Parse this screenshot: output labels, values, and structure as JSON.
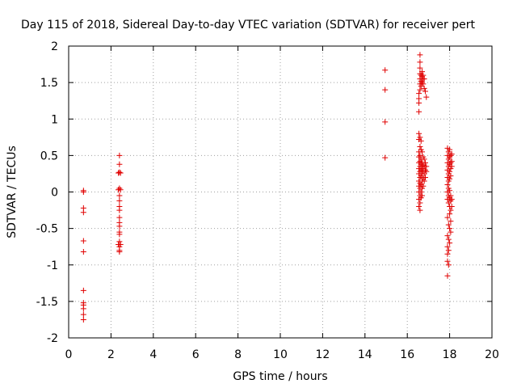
{
  "chart_data": {
    "type": "scatter",
    "title": "Day 115 of 2018, Sidereal Day-to-day VTEC variation (SDTVAR) for receiver pert",
    "xlabel": "GPS time / hours",
    "ylabel": "SDTVAR / TECUs",
    "xlim": [
      0,
      20
    ],
    "ylim": [
      -2,
      2
    ],
    "xticks": [
      "0",
      "2",
      "4",
      "6",
      "8",
      "10",
      "12",
      "14",
      "16",
      "18",
      "20"
    ],
    "yticks": [
      "-2",
      "-1.5",
      "-1",
      "-0.5",
      "0",
      "0.5",
      "1",
      "1.5",
      "2"
    ],
    "grid": true,
    "marker": "+",
    "marker_color": "#e00000",
    "series": [
      {
        "name": "SDTVAR",
        "points": [
          [
            0.7,
            0.02
          ],
          [
            0.7,
            0.0
          ],
          [
            0.7,
            -0.22
          ],
          [
            0.7,
            -0.28
          ],
          [
            0.7,
            -0.67
          ],
          [
            0.7,
            -0.82
          ],
          [
            0.7,
            -1.35
          ],
          [
            0.7,
            -1.52
          ],
          [
            0.7,
            -1.55
          ],
          [
            0.7,
            -1.6
          ],
          [
            0.7,
            -1.68
          ],
          [
            0.7,
            -1.75
          ],
          [
            2.4,
            0.5
          ],
          [
            2.4,
            0.38
          ],
          [
            2.4,
            0.27
          ],
          [
            2.35,
            0.26
          ],
          [
            2.45,
            0.26
          ],
          [
            2.4,
            0.05
          ],
          [
            2.35,
            0.03
          ],
          [
            2.45,
            0.03
          ],
          [
            2.4,
            -0.05
          ],
          [
            2.4,
            -0.12
          ],
          [
            2.4,
            -0.2
          ],
          [
            2.4,
            -0.25
          ],
          [
            2.4,
            -0.35
          ],
          [
            2.4,
            -0.42
          ],
          [
            2.4,
            -0.47
          ],
          [
            2.4,
            -0.55
          ],
          [
            2.4,
            -0.58
          ],
          [
            2.4,
            -0.68
          ],
          [
            2.35,
            -0.72
          ],
          [
            2.45,
            -0.72
          ],
          [
            2.4,
            -0.75
          ],
          [
            2.4,
            -0.8
          ],
          [
            2.4,
            -0.82
          ],
          [
            14.95,
            1.67
          ],
          [
            14.95,
            1.4
          ],
          [
            14.95,
            0.96
          ],
          [
            14.95,
            0.47
          ],
          [
            16.55,
            1.35
          ],
          [
            16.55,
            1.28
          ],
          [
            16.55,
            1.22
          ],
          [
            16.55,
            1.1
          ],
          [
            16.55,
            0.8
          ],
          [
            16.55,
            0.72
          ],
          [
            16.55,
            0.55
          ],
          [
            16.55,
            0.48
          ],
          [
            16.55,
            0.4
          ],
          [
            16.55,
            0.32
          ],
          [
            16.55,
            0.25
          ],
          [
            16.55,
            0.15
          ],
          [
            16.55,
            0.08
          ],
          [
            16.55,
            0.0
          ],
          [
            16.55,
            -0.1
          ],
          [
            16.55,
            -0.2
          ],
          [
            16.6,
            1.88
          ],
          [
            16.6,
            1.78
          ],
          [
            16.6,
            1.7
          ],
          [
            16.6,
            1.62
          ],
          [
            16.6,
            1.55
          ],
          [
            16.6,
            1.48
          ],
          [
            16.6,
            1.4
          ],
          [
            16.6,
            0.75
          ],
          [
            16.6,
            0.62
          ],
          [
            16.6,
            0.5
          ],
          [
            16.6,
            0.42
          ],
          [
            16.6,
            0.35
          ],
          [
            16.6,
            0.28
          ],
          [
            16.6,
            0.2
          ],
          [
            16.6,
            0.12
          ],
          [
            16.6,
            0.05
          ],
          [
            16.6,
            -0.05
          ],
          [
            16.6,
            -0.15
          ],
          [
            16.6,
            -0.25
          ],
          [
            16.65,
            1.6
          ],
          [
            16.65,
            1.52
          ],
          [
            16.65,
            1.45
          ],
          [
            16.65,
            0.7
          ],
          [
            16.65,
            0.58
          ],
          [
            16.65,
            0.45
          ],
          [
            16.65,
            0.38
          ],
          [
            16.65,
            0.3
          ],
          [
            16.65,
            0.22
          ],
          [
            16.65,
            0.1
          ],
          [
            16.65,
            0.0
          ],
          [
            16.65,
            -0.08
          ],
          [
            16.7,
            1.65
          ],
          [
            16.7,
            1.58
          ],
          [
            16.7,
            1.5
          ],
          [
            16.7,
            0.55
          ],
          [
            16.7,
            0.4
          ],
          [
            16.7,
            0.32
          ],
          [
            16.7,
            0.25
          ],
          [
            16.7,
            0.15
          ],
          [
            16.7,
            0.05
          ],
          [
            16.7,
            -0.05
          ],
          [
            16.75,
            1.6
          ],
          [
            16.75,
            1.55
          ],
          [
            16.75,
            1.48
          ],
          [
            16.75,
            0.48
          ],
          [
            16.75,
            0.36
          ],
          [
            16.75,
            0.28
          ],
          [
            16.75,
            0.18
          ],
          [
            16.75,
            0.08
          ],
          [
            16.8,
            1.55
          ],
          [
            16.8,
            1.42
          ],
          [
            16.8,
            0.45
          ],
          [
            16.8,
            0.35
          ],
          [
            16.8,
            0.25
          ],
          [
            16.8,
            0.15
          ],
          [
            16.85,
            1.38
          ],
          [
            16.85,
            0.4
          ],
          [
            16.85,
            0.3
          ],
          [
            16.85,
            0.2
          ],
          [
            16.9,
            1.3
          ],
          [
            16.9,
            0.35
          ],
          [
            16.9,
            0.28
          ],
          [
            17.9,
            0.6
          ],
          [
            17.9,
            0.5
          ],
          [
            17.9,
            0.4
          ],
          [
            17.9,
            0.3
          ],
          [
            17.9,
            0.2
          ],
          [
            17.9,
            0.1
          ],
          [
            17.9,
            0.0
          ],
          [
            17.9,
            -0.1
          ],
          [
            17.9,
            -0.35
          ],
          [
            17.9,
            -0.6
          ],
          [
            17.9,
            -0.75
          ],
          [
            17.9,
            -0.85
          ],
          [
            17.9,
            -0.95
          ],
          [
            17.9,
            -1.15
          ],
          [
            17.95,
            0.55
          ],
          [
            17.95,
            0.45
          ],
          [
            17.95,
            0.35
          ],
          [
            17.95,
            0.25
          ],
          [
            17.95,
            0.15
          ],
          [
            17.95,
            0.05
          ],
          [
            17.95,
            -0.05
          ],
          [
            17.95,
            -0.15
          ],
          [
            17.95,
            -0.45
          ],
          [
            17.95,
            -0.65
          ],
          [
            17.95,
            -0.8
          ],
          [
            17.95,
            -1.0
          ],
          [
            18.0,
            0.58
          ],
          [
            18.0,
            0.48
          ],
          [
            18.0,
            0.38
          ],
          [
            18.0,
            0.28
          ],
          [
            18.0,
            0.18
          ],
          [
            18.0,
            0.02
          ],
          [
            18.0,
            -0.08
          ],
          [
            18.0,
            -0.2
          ],
          [
            18.0,
            -0.3
          ],
          [
            18.0,
            -0.5
          ],
          [
            18.0,
            -0.7
          ],
          [
            18.05,
            0.5
          ],
          [
            18.05,
            0.4
          ],
          [
            18.05,
            0.32
          ],
          [
            18.05,
            0.22
          ],
          [
            18.05,
            -0.05
          ],
          [
            18.05,
            -0.12
          ],
          [
            18.05,
            -0.25
          ],
          [
            18.05,
            -0.4
          ],
          [
            18.05,
            -0.55
          ],
          [
            18.1,
            0.52
          ],
          [
            18.1,
            0.42
          ],
          [
            18.1,
            0.35
          ],
          [
            18.1,
            -0.1
          ],
          [
            18.1,
            -0.2
          ]
        ]
      }
    ]
  }
}
